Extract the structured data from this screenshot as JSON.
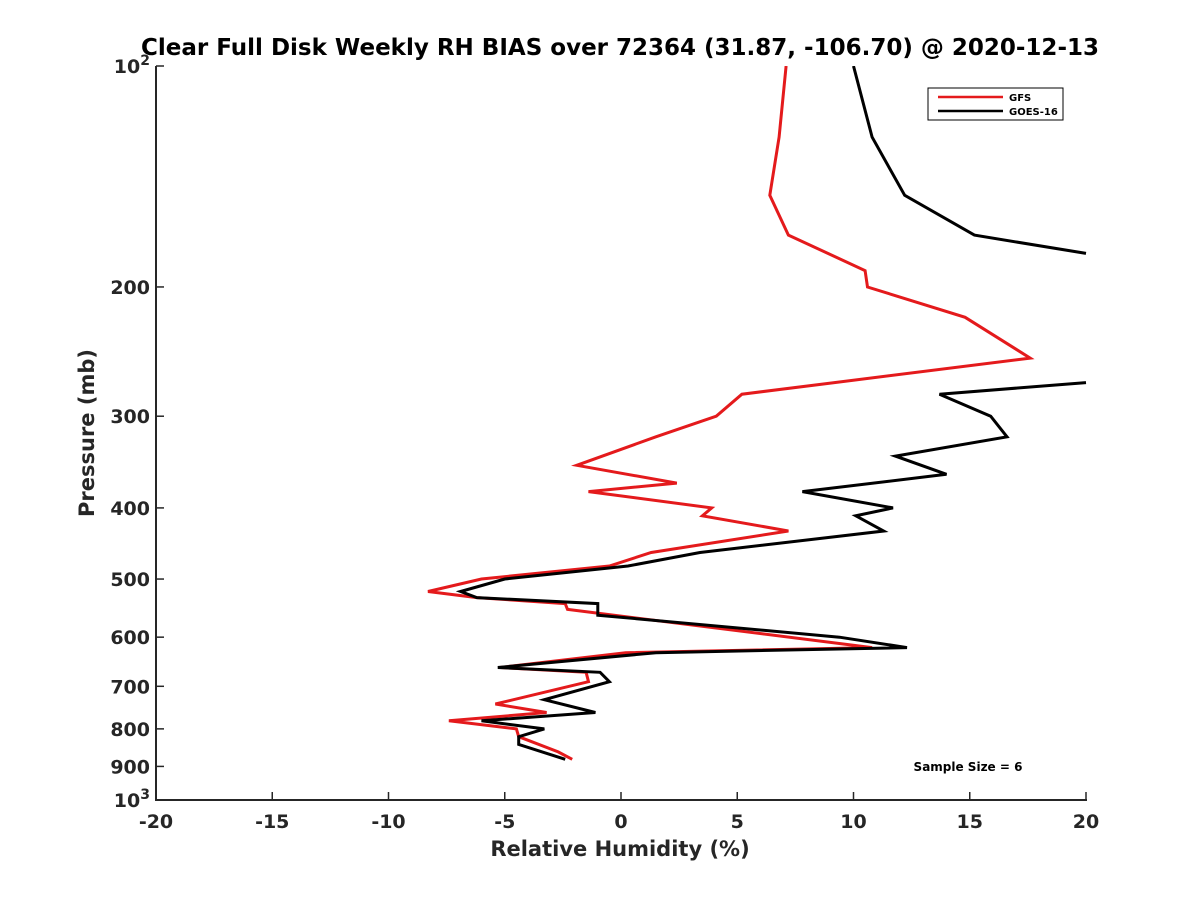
{
  "chart_data": {
    "type": "line",
    "title": "Clear Full Disk Weekly RH BIAS over 72364 (31.87, -106.70) @ 2020-12-13",
    "xlabel": "Relative Humidity (%)",
    "ylabel": "Pressure (mb)",
    "xlim": [
      -20,
      20
    ],
    "ylim": [
      100,
      1000
    ],
    "y_scale": "log",
    "y_reversed": true,
    "grid": false,
    "legend_position": "top-right",
    "annotation": "Sample Size = 6",
    "x_ticks": [
      "-20",
      "-15",
      "-10",
      "-5",
      "0",
      "5",
      "10",
      "15",
      "20"
    ],
    "y_ticks": [
      {
        "value": 100,
        "base": "10",
        "exp": "2"
      },
      {
        "value": 200,
        "label": "200"
      },
      {
        "value": 300,
        "label": "300"
      },
      {
        "value": 400,
        "label": "400"
      },
      {
        "value": 500,
        "label": "500"
      },
      {
        "value": 600,
        "label": "600"
      },
      {
        "value": 700,
        "label": "700"
      },
      {
        "value": 800,
        "label": "800"
      },
      {
        "value": 900,
        "label": "900"
      },
      {
        "value": 1000,
        "base": "10",
        "exp": "3"
      }
    ],
    "series": [
      {
        "name": "GFS",
        "color": "#e41a1c",
        "x": [
          7.1,
          6.8,
          6.4,
          7.2,
          10.5,
          10.6,
          14.8,
          17.6,
          5.2,
          4.1,
          1.5,
          -1.9,
          2.4,
          -1.4,
          3.9,
          3.5,
          7.2,
          1.3,
          -0.5,
          -6.0,
          -8.3,
          -6.2,
          -2.4,
          -2.3,
          10.8,
          0.2,
          -5.2,
          -1.5,
          -1.4,
          -5.4,
          -3.2,
          -7.4,
          -4.5,
          -4.4,
          -2.7,
          -2.1
        ],
        "y": [
          100,
          125,
          150,
          170,
          190,
          200,
          220,
          250,
          280,
          300,
          320,
          350,
          370,
          380,
          400,
          410,
          430,
          460,
          480,
          500,
          520,
          530,
          540,
          550,
          620,
          630,
          660,
          670,
          690,
          740,
          760,
          780,
          800,
          820,
          860,
          880
        ]
      },
      {
        "name": "GOES-16",
        "color": "#000000",
        "x": [
          10.0,
          10.8,
          12.2,
          15.2,
          20.0,
          null,
          20.0,
          13.7,
          15.9,
          16.6,
          11.8,
          14.0,
          7.8,
          11.7,
          10.1,
          11.3,
          3.4,
          0.3,
          -5.0,
          -6.9,
          -6.2,
          -1.0,
          -1.0,
          9.4,
          12.3,
          1.5,
          -5.3,
          -0.9,
          -0.5,
          -3.3,
          -1.1,
          -6.0,
          -3.3,
          -4.4,
          -4.4,
          -2.4
        ],
        "y": [
          100,
          125,
          150,
          170,
          180,
          null,
          270,
          280,
          300,
          320,
          340,
          360,
          380,
          400,
          410,
          430,
          460,
          480,
          500,
          520,
          530,
          540,
          560,
          600,
          620,
          630,
          660,
          670,
          690,
          730,
          760,
          780,
          800,
          820,
          840,
          880
        ]
      }
    ]
  }
}
